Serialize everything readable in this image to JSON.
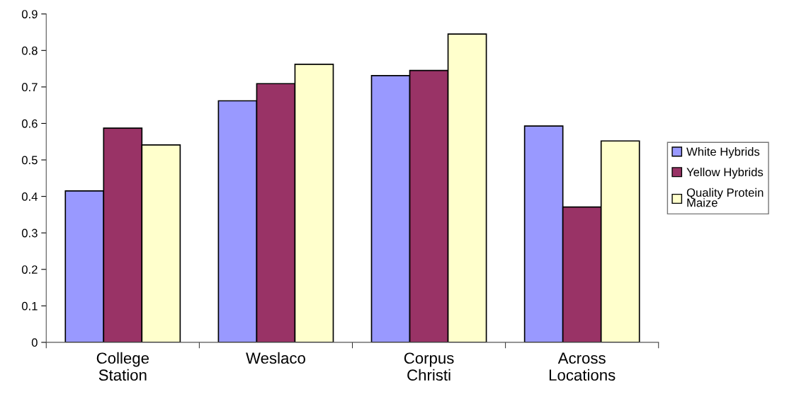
{
  "chart_data": {
    "type": "bar",
    "categories": [
      "College\nStation",
      "Weslaco",
      "Corpus\nChristi",
      "Across\nLocations"
    ],
    "series": [
      {
        "name": "White Hybrids",
        "color": "#9999ff",
        "values": [
          0.415,
          0.662,
          0.731,
          0.593
        ]
      },
      {
        "name": "Yellow Hybrids",
        "color": "#993366",
        "values": [
          0.587,
          0.709,
          0.745,
          0.371
        ]
      },
      {
        "name": "Quality Protein\nMaize",
        "color": "#ffffcc",
        "values": [
          0.541,
          0.762,
          0.845,
          0.552
        ]
      }
    ],
    "ylim": [
      0,
      0.9
    ],
    "yticks": [
      0,
      0.1,
      0.2,
      0.3,
      0.4,
      0.5,
      0.6,
      0.7,
      0.8,
      0.9
    ],
    "grid": false,
    "legend": "right"
  }
}
